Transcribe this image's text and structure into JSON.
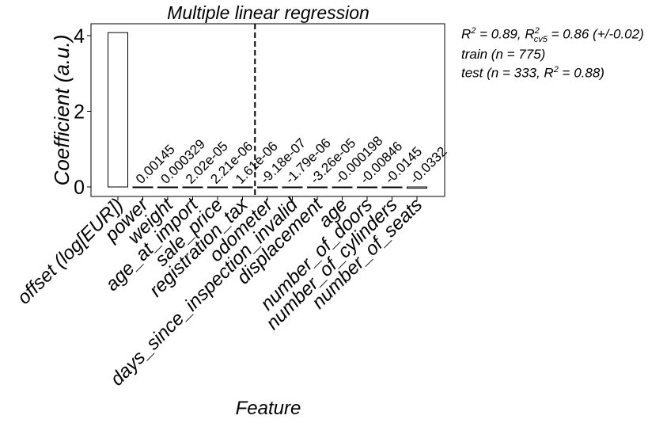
{
  "chart_data": {
    "type": "bar",
    "title": "Multiple linear regression",
    "xlabel": "Feature",
    "ylabel": "Coefficient (a.u.)",
    "categories": [
      "offset (log[EUR])",
      "power",
      "weight",
      "age_at_import",
      "sale_price",
      "registration_tax",
      "odometer",
      "days_since_inspection_invalid",
      "displacement",
      "age",
      "number_of_doors",
      "number_of_cylinders",
      "number_of_seats"
    ],
    "values": [
      4.08,
      0.00145,
      0.000329,
      2.02e-05,
      2.21e-06,
      1.61e-06,
      -9.18e-07,
      -1.79e-06,
      -3.26e-05,
      -0.000198,
      -0.00846,
      -0.0145,
      -0.0332
    ],
    "data_labels": [
      "",
      "0.00145",
      "0.000329",
      "2.02e-05",
      "2.21e-06",
      "1.61e-06",
      "-9.18e-07",
      "-1.79e-06",
      "-3.26e-05",
      "-0.000198",
      "-0.00846",
      "-0.0145",
      "-0.0332"
    ],
    "yticks": [
      0,
      2,
      4
    ],
    "ylim": [
      -0.25,
      4.3
    ],
    "divider_after_index": 5,
    "bar_fill": "#ffffff",
    "bar_edge": "#000000"
  },
  "annotations": {
    "r2_prefix": "R",
    "r2_exp": "2",
    "r2_value": " = 0.89, R",
    "r2cv_exp": "2",
    "r2cv_sub": "cv5",
    "r2cv_value": " = 0.86 (+/-0.02)",
    "train": "train (n = 775)",
    "test_prefix": "test (n = 333, R",
    "test_exp": "2",
    "test_suffix": " = 0.88)"
  }
}
